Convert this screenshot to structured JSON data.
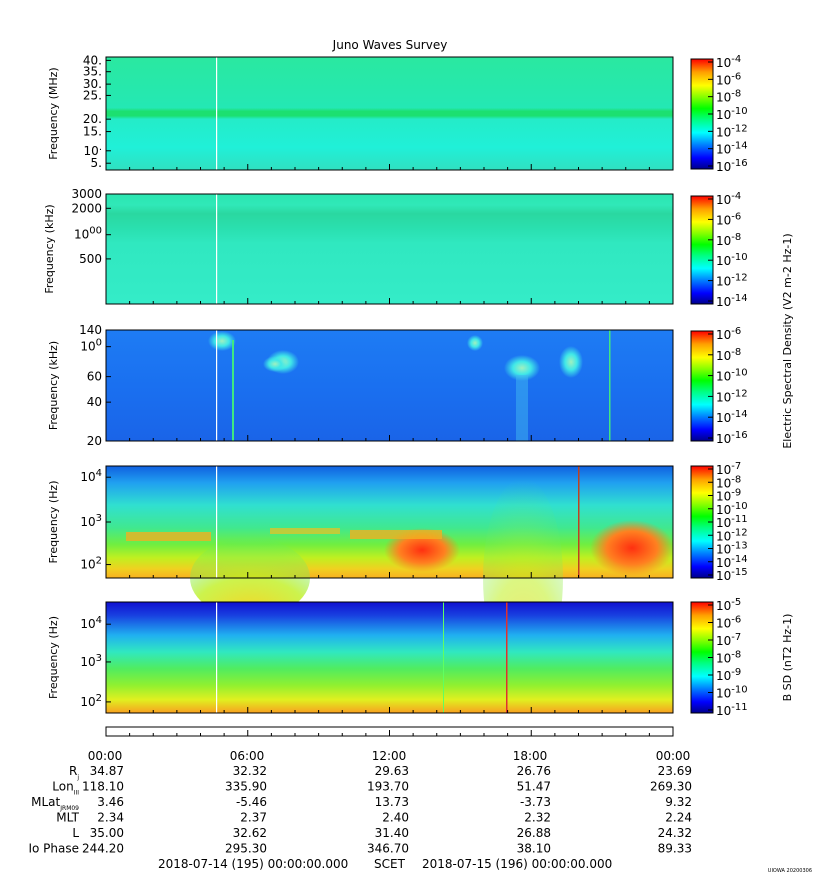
{
  "title": "Juno Waves Survey",
  "panels": [
    {
      "ylabel": "Frequency (MHz)",
      "yticks": [
        "40.",
        "35.",
        "30.",
        "25.",
        "20.",
        "15.",
        "10.",
        "5."
      ],
      "cbar_ticks": [
        "10-4",
        "10-6",
        "10-8",
        "10-10",
        "10-12",
        "10-14",
        "10-16"
      ],
      "cbar_label": ""
    },
    {
      "ylabel": "Frequency (kHz)",
      "yticks": [
        "3000",
        "2000",
        "1000",
        "500"
      ],
      "cbar_ticks": [
        "10-4",
        "10-6",
        "10-8",
        "10-10",
        "10-12",
        "10-14"
      ],
      "cbar_label": ""
    },
    {
      "ylabel": "Frequency (kHz)",
      "yticks": [
        "140",
        "100",
        "60",
        "40",
        "20"
      ],
      "cbar_ticks": [
        "10-6",
        "10-8",
        "10-10",
        "10-12",
        "10-14",
        "10-16"
      ],
      "cbar_label": "Electric Spectral Density (V2 m-2 Hz-1)"
    },
    {
      "ylabel": "Frequency (Hz)",
      "yticks": [
        "104",
        "103",
        "102"
      ],
      "cbar_ticks": [
        "10-7",
        "10-8",
        "10-9",
        "10-10",
        "10-11",
        "10-12",
        "10-13",
        "10-14",
        "10-15"
      ],
      "cbar_label": ""
    },
    {
      "ylabel": "Frequency (Hz)",
      "yticks": [
        "104",
        "103",
        "102"
      ],
      "cbar_ticks": [
        "10-5",
        "10-6",
        "10-7",
        "10-8",
        "10-9",
        "10-10",
        "10-11"
      ],
      "cbar_label": "B SD (nT2 Hz-1)"
    }
  ],
  "time_ticks": [
    "00:00",
    "06:00",
    "12:00",
    "18:00",
    "00:00"
  ],
  "ephemeris": [
    {
      "label": "R",
      "sub": "j",
      "values": [
        "34.87",
        "32.32",
        "29.63",
        "26.76",
        "23.69"
      ]
    },
    {
      "label": "Lon",
      "sub": "III",
      "values": [
        "118.10",
        "335.90",
        "193.70",
        "51.47",
        "269.30"
      ]
    },
    {
      "label": "MLat",
      "sub": "JRM09",
      "values": [
        "3.46",
        "-5.46",
        "13.73",
        "-3.73",
        "9.32"
      ]
    },
    {
      "label": "MLT",
      "sub": "",
      "values": [
        "2.34",
        "2.37",
        "2.40",
        "2.32",
        "2.24"
      ]
    },
    {
      "label": "L",
      "sub": "",
      "values": [
        "35.00",
        "32.62",
        "31.40",
        "26.88",
        "24.32"
      ]
    },
    {
      "label": "Io Phase",
      "sub": "",
      "values": [
        "244.20",
        "295.30",
        "346.70",
        "38.10",
        "89.33"
      ]
    }
  ],
  "footer": {
    "start": "2018-07-14 (195) 00:00:00.000",
    "scet": "SCET",
    "end": "2018-07-15 (196) 00:00:00.000"
  },
  "stamp": "UIOWA 20200306",
  "colors": {
    "cbar_stops": [
      "#00008b",
      "#0000ff",
      "#0080ff",
      "#00ffff",
      "#00ff80",
      "#00ff00",
      "#80ff00",
      "#ffff00",
      "#ffa000",
      "#ff0000"
    ]
  },
  "chart_data": {
    "type": "heatmap",
    "title": "Juno Waves Survey",
    "x_range": [
      "2018-07-14 00:00",
      "2018-07-15 00:00"
    ],
    "x_ticks": [
      "00:00",
      "06:00",
      "12:00",
      "18:00",
      "00:00"
    ],
    "panels": [
      {
        "ylabel": "Frequency (MHz)",
        "ylim": [
          3,
          41
        ],
        "y_scale": "linear",
        "clim_log10": [
          -17,
          -4
        ]
      },
      {
        "ylabel": "Frequency (kHz)",
        "ylim": [
          140,
          3000
        ],
        "y_scale": "linear",
        "clim_log10": [
          -15,
          -3.5
        ]
      },
      {
        "ylabel": "Frequency (kHz)",
        "ylim": [
          20,
          140
        ],
        "y_scale": "log",
        "clim_log10": [
          -16,
          -6
        ]
      },
      {
        "ylabel": "Frequency (Hz)",
        "ylim": [
          50,
          20000
        ],
        "y_scale": "log",
        "clim_log10": [
          -15,
          -7
        ]
      },
      {
        "ylabel": "Frequency (Hz)",
        "ylim": [
          50,
          25000
        ],
        "y_scale": "log",
        "clim_log10": [
          -11,
          -4.5
        ]
      }
    ]
  }
}
